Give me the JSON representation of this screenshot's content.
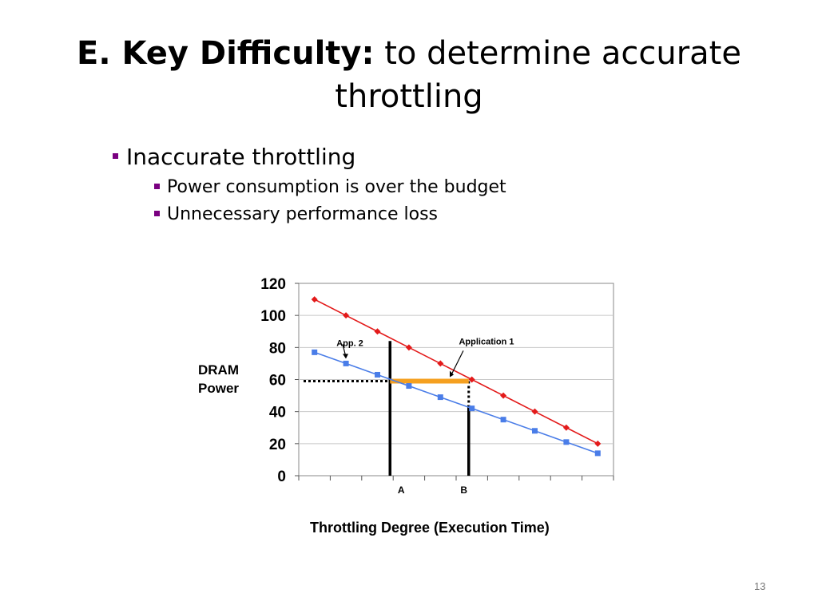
{
  "slide": {
    "title_bold": "E. Key Difficulty:",
    "title_rest": " to determine accurate throttling",
    "bullet1": "Inaccurate throttling",
    "sub_bullet1": "Power consumption is over the budget",
    "sub_bullet2": "Unnecessary performance loss",
    "page_number": "13"
  },
  "chart_data": {
    "type": "line",
    "ylabel": "DRAM Power",
    "xlabel": "Throttling Degree  (Execution Time)",
    "ylim": [
      0,
      120
    ],
    "yticks": [
      0,
      20,
      40,
      60,
      80,
      100,
      120
    ],
    "x": [
      1,
      2,
      3,
      4,
      5,
      6,
      7,
      8,
      9,
      10
    ],
    "series": [
      {
        "name": "Application 1",
        "color": "#e31a1a",
        "marker": "diamond",
        "values": [
          110,
          100,
          90,
          80,
          70,
          60,
          50,
          40,
          30,
          20
        ]
      },
      {
        "name": "App. 2",
        "color": "#4a7de8",
        "marker": "square",
        "values": [
          77,
          70,
          63,
          56,
          49,
          42,
          35,
          28,
          21,
          14
        ]
      }
    ],
    "markers": [
      {
        "label": "A",
        "x": 3.4
      },
      {
        "label": "B",
        "x": 5.9
      }
    ],
    "budget_level": 59,
    "highlight_color": "#f5a020",
    "grid": true
  }
}
